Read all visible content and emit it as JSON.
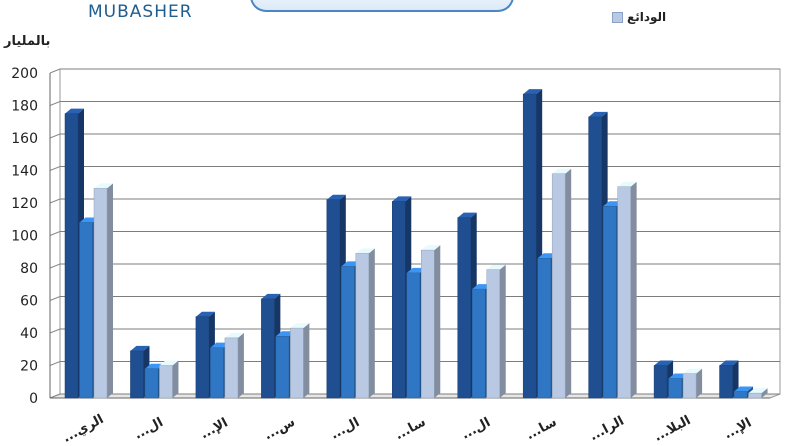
{
  "brand": "MUBASHER",
  "unit_label": "بالمليار",
  "legend": [
    {
      "name": "الودائع",
      "color": "#b9c9e4"
    }
  ],
  "chart_data": {
    "type": "bar",
    "categories": [
      "الري...",
      "ال...",
      "الإ...",
      "س...",
      "ال...",
      "سا...",
      "ال...",
      "سا...",
      "الرا...",
      "البلا...",
      "الإ..."
    ],
    "series": [
      {
        "color": "#1f4e91",
        "values": [
          175,
          29,
          50,
          61,
          122,
          121,
          111,
          187,
          173,
          20,
          20
        ]
      },
      {
        "color": "#2f77c4",
        "values": [
          108,
          18,
          31,
          38,
          81,
          77,
          67,
          86,
          118,
          12,
          4
        ]
      },
      {
        "name": "الودائع",
        "color": "#b9c9e4",
        "values": [
          129,
          20,
          37,
          43,
          89,
          91,
          79,
          138,
          130,
          15,
          3
        ]
      }
    ],
    "yticks": [
      0,
      20,
      40,
      60,
      80,
      100,
      120,
      140,
      160,
      180,
      200
    ],
    "ylim": [
      0,
      200
    ],
    "grid": true
  }
}
